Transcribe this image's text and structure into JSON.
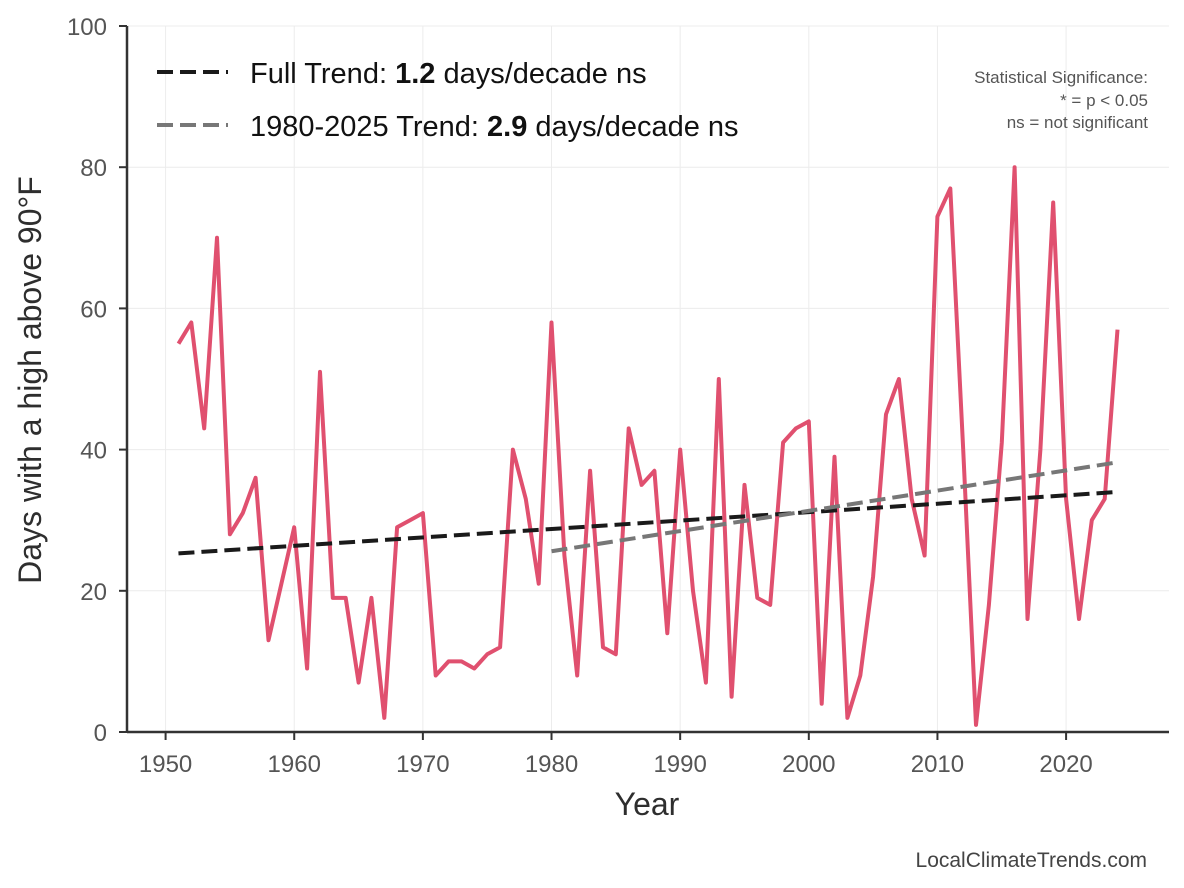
{
  "chart_data": {
    "type": "line",
    "xlabel": "Year",
    "ylabel": "Days with a high above 90°F",
    "xlim": [
      1947,
      2028
    ],
    "ylim": [
      0,
      100
    ],
    "xticks": [
      1950,
      1960,
      1970,
      1980,
      1990,
      2000,
      2010,
      2020
    ],
    "yticks": [
      0,
      20,
      40,
      60,
      80,
      100
    ],
    "grid": true,
    "legend_position": "top-left",
    "series": [
      {
        "color": "#e0506f",
        "x": [
          1951,
          1952,
          1953,
          1954,
          1955,
          1956,
          1957,
          1958,
          1959,
          1960,
          1961,
          1962,
          1963,
          1964,
          1965,
          1966,
          1967,
          1968,
          1969,
          1970,
          1971,
          1972,
          1973,
          1974,
          1975,
          1976,
          1977,
          1978,
          1979,
          1980,
          1981,
          1982,
          1983,
          1984,
          1985,
          1986,
          1987,
          1988,
          1989,
          1990,
          1991,
          1992,
          1993,
          1994,
          1995,
          1996,
          1997,
          1998,
          1999,
          2000,
          2001,
          2002,
          2003,
          2004,
          2005,
          2006,
          2007,
          2008,
          2009,
          2010,
          2011,
          2012,
          2013,
          2014,
          2015,
          2016,
          2017,
          2018,
          2019,
          2020,
          2021,
          2022,
          2023,
          2024
        ],
        "values": [
          55,
          58,
          43,
          70,
          28,
          31,
          36,
          13,
          21,
          29,
          9,
          51,
          19,
          19,
          7,
          19,
          2,
          29,
          30,
          31,
          8,
          10,
          10,
          9,
          11,
          12,
          40,
          33,
          21,
          58,
          25,
          8,
          37,
          12,
          11,
          43,
          35,
          37,
          14,
          40,
          20,
          7,
          50,
          5,
          35,
          19,
          18,
          41,
          43,
          44,
          4,
          39,
          2,
          8,
          22,
          45,
          50,
          33,
          25,
          73,
          77,
          40,
          1,
          18,
          41,
          80,
          16,
          40,
          75,
          33,
          16,
          30,
          33,
          57
        ]
      }
    ],
    "trends": [
      {
        "label_prefix": "Full Trend: ",
        "rate": "1.2",
        "label_suffix": " days/decade ns",
        "color": "#1a1a1a",
        "x": [
          1951,
          2024
        ],
        "y": [
          25.3,
          34.0
        ]
      },
      {
        "label_prefix": "1980-2025 Trend: ",
        "rate": "2.9",
        "label_suffix": " days/decade ns",
        "color": "#777777",
        "x": [
          1980,
          2024
        ],
        "y": [
          25.6,
          38.2
        ]
      }
    ],
    "significance_note": [
      "Statistical Significance:",
      "* = p < 0.05",
      "ns = not significant"
    ],
    "watermark": "LocalClimateTrends.com"
  }
}
